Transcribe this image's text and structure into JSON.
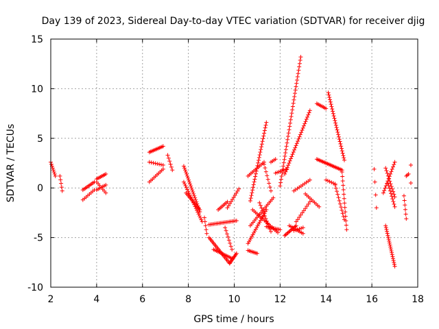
{
  "chart_data": {
    "type": "scatter",
    "title": "Day 139 of 2023, Sidereal Day-to-day VTEC variation (SDTVAR) for receiver djig",
    "xlabel": "GPS time / hours",
    "ylabel": "SDTVAR / TECUs",
    "xlim": [
      2,
      18
    ],
    "ylim": [
      -10,
      15
    ],
    "xticks": [
      "2",
      "4",
      "6",
      "8",
      "10",
      "12",
      "14",
      "16",
      "18"
    ],
    "yticks": [
      "-10",
      "-5",
      "0",
      "5",
      "10",
      "15"
    ],
    "grid": true,
    "marker": "plus",
    "color": "#ff0000",
    "segments": [
      {
        "start": [
          2.0,
          2.6
        ],
        "end": [
          2.2,
          1.2
        ],
        "n": 8
      },
      {
        "start": [
          2.4,
          1.2
        ],
        "end": [
          2.5,
          -0.3
        ],
        "n": 5
      },
      {
        "start": [
          3.4,
          -0.2
        ],
        "end": [
          3.9,
          0.6
        ],
        "n": 10
      },
      {
        "start": [
          3.4,
          -1.2
        ],
        "end": [
          3.9,
          -0.2
        ],
        "n": 8
      },
      {
        "start": [
          4.0,
          0.9
        ],
        "end": [
          4.4,
          1.4
        ],
        "n": 8
      },
      {
        "start": [
          4.0,
          -0.2
        ],
        "end": [
          4.4,
          0.3
        ],
        "n": 7
      },
      {
        "start": [
          4.0,
          0.6
        ],
        "end": [
          4.4,
          -0.5
        ],
        "n": 7
      },
      {
        "start": [
          6.3,
          3.6
        ],
        "end": [
          6.9,
          4.2
        ],
        "n": 12
      },
      {
        "start": [
          6.3,
          2.6
        ],
        "end": [
          6.9,
          2.3
        ],
        "n": 8
      },
      {
        "start": [
          6.3,
          0.6
        ],
        "end": [
          6.9,
          1.9
        ],
        "n": 10
      },
      {
        "start": [
          7.1,
          3.3
        ],
        "end": [
          7.3,
          1.8
        ],
        "n": 6
      },
      {
        "start": [
          7.8,
          2.2
        ],
        "end": [
          8.5,
          -2.4
        ],
        "n": 24
      },
      {
        "start": [
          7.8,
          0.6
        ],
        "end": [
          8.6,
          -3.4
        ],
        "n": 22
      },
      {
        "start": [
          7.9,
          -0.5
        ],
        "end": [
          8.5,
          -2.2
        ],
        "n": 14
      },
      {
        "start": [
          8.7,
          -3.0
        ],
        "end": [
          8.8,
          -4.6
        ],
        "n": 5
      },
      {
        "start": [
          8.9,
          -3.7
        ],
        "end": [
          10.1,
          -3.3
        ],
        "n": 20
      },
      {
        "start": [
          8.9,
          -5.0
        ],
        "end": [
          9.8,
          -7.6
        ],
        "n": 22
      },
      {
        "start": [
          9.1,
          -6.2
        ],
        "end": [
          9.9,
          -7.1
        ],
        "n": 14
      },
      {
        "start": [
          9.8,
          -7.6
        ],
        "end": [
          10.1,
          -6.6
        ],
        "n": 10
      },
      {
        "start": [
          9.3,
          -2.2
        ],
        "end": [
          9.7,
          -1.4
        ],
        "n": 8
      },
      {
        "start": [
          9.7,
          -2.0
        ],
        "end": [
          10.2,
          -0.1
        ],
        "n": 10
      },
      {
        "start": [
          9.6,
          -4.0
        ],
        "end": [
          9.9,
          -6.2
        ],
        "n": 8
      },
      {
        "start": [
          10.6,
          1.2
        ],
        "end": [
          11.3,
          2.6
        ],
        "n": 12
      },
      {
        "start": [
          10.7,
          -1.3
        ],
        "end": [
          11.4,
          6.6
        ],
        "n": 30
      },
      {
        "start": [
          10.6,
          -6.3
        ],
        "end": [
          11.0,
          -6.6
        ],
        "n": 8
      },
      {
        "start": [
          10.6,
          -5.6
        ],
        "end": [
          11.4,
          -2.2
        ],
        "n": 20
      },
      {
        "start": [
          10.7,
          -3.8
        ],
        "end": [
          11.7,
          -1.0
        ],
        "n": 18
      },
      {
        "start": [
          10.8,
          -2.2
        ],
        "end": [
          11.9,
          -4.5
        ],
        "n": 18
      },
      {
        "start": [
          11.1,
          -1.5
        ],
        "end": [
          11.6,
          -4.4
        ],
        "n": 12
      },
      {
        "start": [
          11.3,
          2.4
        ],
        "end": [
          11.6,
          -0.3
        ],
        "n": 8
      },
      {
        "start": [
          11.6,
          2.6
        ],
        "end": [
          11.8,
          2.9
        ],
        "n": 4
      },
      {
        "start": [
          11.4,
          -3.9
        ],
        "end": [
          12.0,
          -4.2
        ],
        "n": 10
      },
      {
        "start": [
          11.8,
          1.5
        ],
        "end": [
          12.3,
          1.9
        ],
        "n": 8
      },
      {
        "start": [
          12.0,
          0.2
        ],
        "end": [
          12.9,
          13.2
        ],
        "n": 40
      },
      {
        "start": [
          12.2,
          -4.8
        ],
        "end": [
          12.7,
          -3.8
        ],
        "n": 12
      },
      {
        "start": [
          12.2,
          1.4
        ],
        "end": [
          13.3,
          7.8
        ],
        "n": 30
      },
      {
        "start": [
          12.4,
          -3.8
        ],
        "end": [
          13.0,
          -4.6
        ],
        "n": 10
      },
      {
        "start": [
          12.6,
          -4.3
        ],
        "end": [
          13.0,
          -4.0
        ],
        "n": 6
      },
      {
        "start": [
          12.6,
          -0.3
        ],
        "end": [
          13.3,
          0.8
        ],
        "n": 10
      },
      {
        "start": [
          12.7,
          -3.4
        ],
        "end": [
          13.3,
          -1.4
        ],
        "n": 10
      },
      {
        "start": [
          13.1,
          -0.6
        ],
        "end": [
          13.7,
          -1.9
        ],
        "n": 10
      },
      {
        "start": [
          13.6,
          8.5
        ],
        "end": [
          14.0,
          8.0
        ],
        "n": 8
      },
      {
        "start": [
          14.1,
          9.6
        ],
        "end": [
          14.8,
          2.8
        ],
        "n": 30
      },
      {
        "start": [
          13.6,
          2.9
        ],
        "end": [
          14.7,
          1.8
        ],
        "n": 22
      },
      {
        "start": [
          14.7,
          1.6
        ],
        "end": [
          14.9,
          -4.2
        ],
        "n": 14
      },
      {
        "start": [
          14.0,
          0.8
        ],
        "end": [
          14.4,
          0.4
        ],
        "n": 6
      },
      {
        "start": [
          14.4,
          0.3
        ],
        "end": [
          14.8,
          -3.2
        ],
        "n": 12
      },
      {
        "start": [
          16.1,
          1.9
        ],
        "end": [
          16.2,
          -2.0
        ],
        "n": 4
      },
      {
        "start": [
          16.5,
          -0.5
        ],
        "end": [
          17.0,
          2.6
        ],
        "n": 14
      },
      {
        "start": [
          16.6,
          2.0
        ],
        "end": [
          17.0,
          -0.9
        ],
        "n": 12
      },
      {
        "start": [
          16.7,
          0.5
        ],
        "end": [
          17.0,
          -1.9
        ],
        "n": 10
      },
      {
        "start": [
          16.6,
          -3.8
        ],
        "end": [
          17.0,
          -7.9
        ],
        "n": 22
      },
      {
        "start": [
          17.4,
          -0.8
        ],
        "end": [
          17.5,
          -3.1
        ],
        "n": 6
      },
      {
        "start": [
          17.5,
          1.2
        ],
        "end": [
          17.6,
          1.4
        ],
        "n": 3
      },
      {
        "start": [
          17.7,
          2.3
        ],
        "end": [
          17.7,
          0.5
        ],
        "n": 2
      }
    ]
  }
}
